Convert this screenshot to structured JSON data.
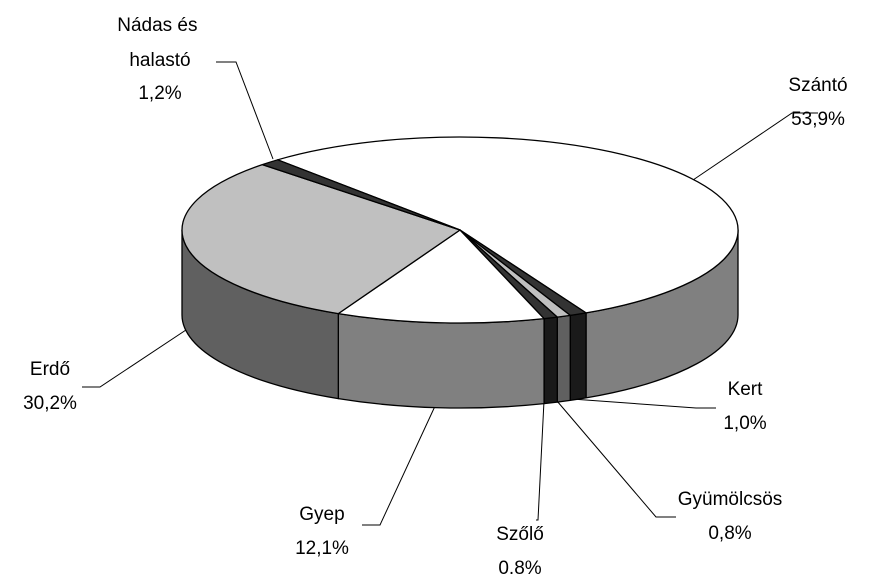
{
  "chart_data": {
    "type": "pie3d",
    "categories": [
      "Szántó",
      "Kert",
      "Gyümölcsös",
      "Szőlő",
      "Gyep",
      "Erdő",
      "Nádas és halastó"
    ],
    "values": [
      53.9,
      1.0,
      0.8,
      0.8,
      12.1,
      30.2,
      1.2
    ],
    "value_labels": [
      "53,9%",
      "1,0%",
      "0,8%",
      "0.8%",
      "12,1%",
      "30,2%",
      "1,2%"
    ],
    "colors": [
      "#ffffff",
      "#333333",
      "#c0c0c0",
      "#333333",
      "#ffffff",
      "#c0c0c0",
      "#333333"
    ]
  }
}
